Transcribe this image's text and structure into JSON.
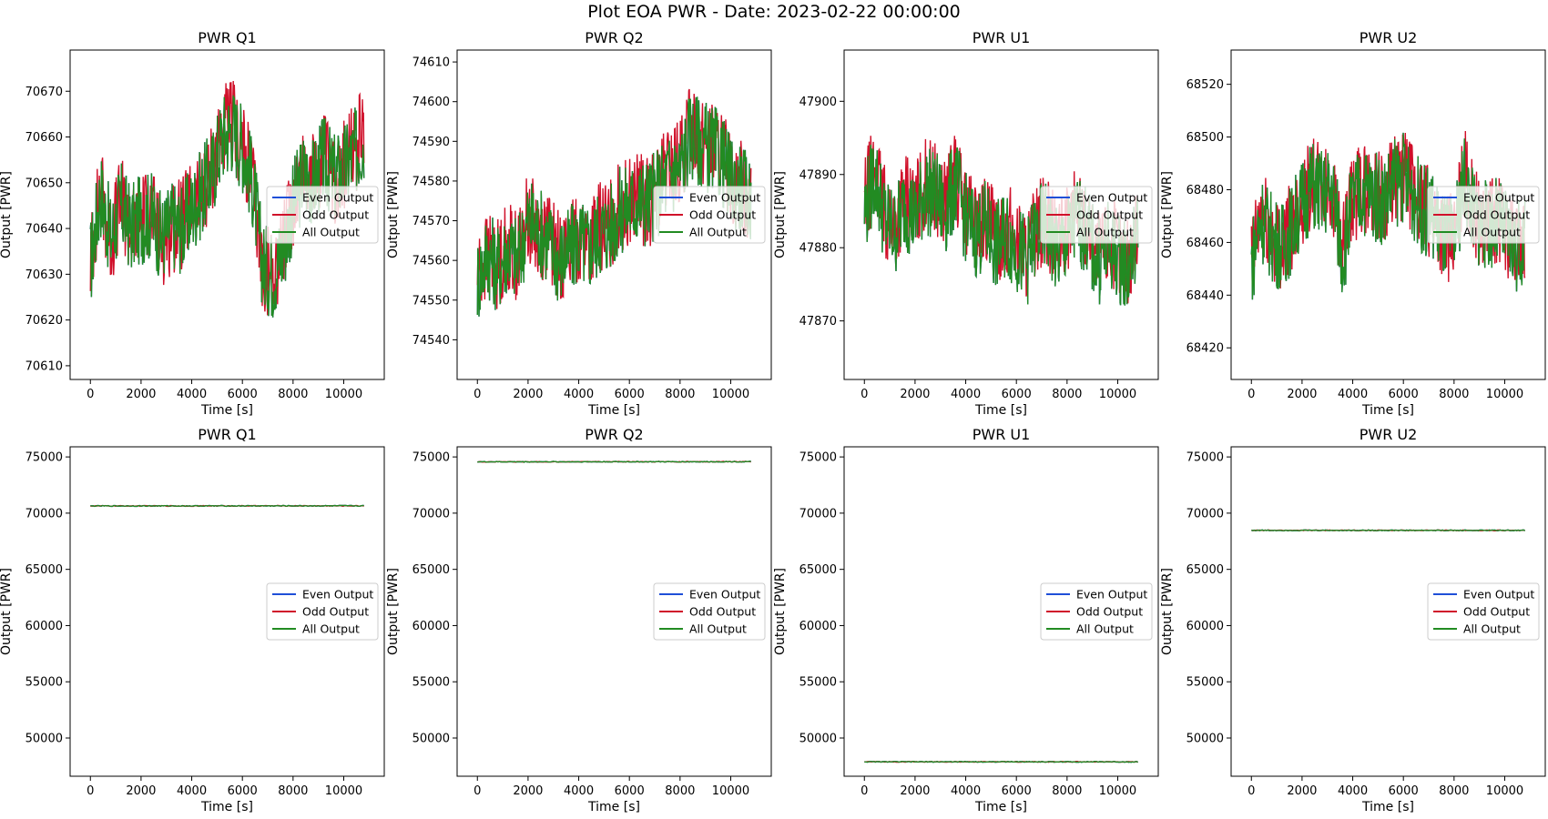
{
  "figure": {
    "title": "Plot EOA PWR - Date: 2023-02-22 00:00:00"
  },
  "legend_labels": [
    "Even Output",
    "Odd Output",
    "All Output"
  ],
  "series_colors": {
    "Even Output": "#1f4fd8",
    "Odd Output": "#d0102a",
    "All Output": "#228b22"
  },
  "chart_data": [
    {
      "type": "line",
      "title": "PWR Q1",
      "xlabel": "Time [s]",
      "ylabel": "Output [PWR]",
      "xlim": [
        -800,
        11600
      ],
      "ylim": [
        70607,
        70679
      ],
      "xticks": [
        0,
        2000,
        4000,
        6000,
        8000,
        10000
      ],
      "yticks": [
        70610,
        70620,
        70630,
        70640,
        70650,
        70660,
        70670
      ],
      "legend": "center-right",
      "grid": false,
      "x": [
        0,
        400,
        800,
        1200,
        1600,
        2000,
        2400,
        2800,
        3200,
        3600,
        4000,
        4400,
        4800,
        5200,
        5600,
        6000,
        6400,
        6800,
        7200,
        7600,
        8000,
        8400,
        8800,
        9200,
        9600,
        10000,
        10400,
        10800
      ],
      "series": [
        {
          "name": "Even Output",
          "values": [
            70632,
            70648,
            70638,
            70645,
            70640,
            70642,
            70643,
            70638,
            70641,
            70640,
            70644,
            70648,
            70652,
            70660,
            70662,
            70658,
            70650,
            70632,
            70630,
            70635,
            70645,
            70652,
            70650,
            70655,
            70651,
            70653,
            70656,
            70660
          ]
        },
        {
          "name": "Odd Output",
          "values": [
            70633,
            70649,
            70637,
            70646,
            70639,
            70643,
            70644,
            70637,
            70640,
            70641,
            70645,
            70647,
            70653,
            70661,
            70663,
            70657,
            70651,
            70631,
            70631,
            70636,
            70646,
            70654,
            70651,
            70656,
            70650,
            70654,
            70657,
            70661
          ]
        },
        {
          "name": "All Output",
          "values": [
            70632,
            70648,
            70638,
            70645,
            70640,
            70642,
            70643,
            70638,
            70641,
            70640,
            70644,
            70648,
            70652,
            70660,
            70662,
            70658,
            70650,
            70632,
            70630,
            70635,
            70645,
            70652,
            70650,
            70655,
            70651,
            70653,
            70656,
            70660
          ]
        }
      ]
    },
    {
      "type": "line",
      "title": "PWR Q2",
      "xlabel": "Time [s]",
      "ylabel": "Output [PWR]",
      "xlim": [
        -800,
        11600
      ],
      "ylim": [
        74530,
        74613
      ],
      "xticks": [
        0,
        2000,
        4000,
        6000,
        8000,
        10000
      ],
      "yticks": [
        74540,
        74550,
        74560,
        74570,
        74580,
        74590,
        74600,
        74610
      ],
      "legend": "center-right",
      "grid": false,
      "x": [
        0,
        400,
        800,
        1200,
        1600,
        2000,
        2400,
        2800,
        3200,
        3600,
        4000,
        4400,
        4800,
        5200,
        5600,
        6000,
        6400,
        6800,
        7200,
        7600,
        8000,
        8400,
        8800,
        9200,
        9600,
        10000,
        10400,
        10800
      ],
      "series": [
        {
          "name": "Even Output",
          "values": [
            74555,
            74562,
            74558,
            74563,
            74560,
            74570,
            74568,
            74565,
            74560,
            74562,
            74565,
            74563,
            74567,
            74568,
            74572,
            74574,
            74575,
            74575,
            74578,
            74582,
            74583,
            74592,
            74590,
            74588,
            74586,
            74580,
            74578,
            74575
          ]
        },
        {
          "name": "Odd Output",
          "values": [
            74556,
            74561,
            74559,
            74564,
            74561,
            74571,
            74567,
            74566,
            74561,
            74563,
            74566,
            74564,
            74568,
            74569,
            74573,
            74575,
            74576,
            74574,
            74579,
            74583,
            74584,
            74594,
            74591,
            74589,
            74587,
            74581,
            74579,
            74576
          ]
        },
        {
          "name": "All Output",
          "values": [
            74555,
            74562,
            74558,
            74563,
            74560,
            74570,
            74568,
            74565,
            74560,
            74562,
            74565,
            74563,
            74567,
            74568,
            74572,
            74574,
            74575,
            74575,
            74578,
            74582,
            74583,
            74592,
            74590,
            74588,
            74586,
            74580,
            74578,
            74575
          ]
        }
      ]
    },
    {
      "type": "line",
      "title": "PWR U1",
      "xlabel": "Time [s]",
      "ylabel": "Output [PWR]",
      "xlim": [
        -800,
        11600
      ],
      "ylim": [
        47862,
        47907
      ],
      "xticks": [
        0,
        2000,
        4000,
        6000,
        8000,
        10000
      ],
      "yticks": [
        47870,
        47880,
        47890,
        47900
      ],
      "legend": "center-right",
      "grid": false,
      "x": [
        0,
        400,
        800,
        1200,
        1600,
        2000,
        2400,
        2800,
        3200,
        3600,
        4000,
        4400,
        4800,
        5200,
        5600,
        6000,
        6400,
        6800,
        7200,
        7600,
        8000,
        8400,
        8800,
        9200,
        9600,
        10000,
        10400,
        10800
      ],
      "series": [
        {
          "name": "Even Output",
          "values": [
            47885,
            47890,
            47884,
            47882,
            47886,
            47884,
            47888,
            47887,
            47885,
            47889,
            47884,
            47882,
            47883,
            47880,
            47882,
            47880,
            47878,
            47882,
            47883,
            47879,
            47881,
            47884,
            47882,
            47878,
            47880,
            47879,
            47877,
            47882
          ]
        },
        {
          "name": "Odd Output",
          "values": [
            47886,
            47891,
            47885,
            47883,
            47887,
            47885,
            47889,
            47888,
            47886,
            47890,
            47885,
            47883,
            47884,
            47881,
            47883,
            47881,
            47879,
            47883,
            47884,
            47880,
            47882,
            47886,
            47883,
            47879,
            47881,
            47880,
            47878,
            47883
          ]
        },
        {
          "name": "All Output",
          "values": [
            47885,
            47890,
            47884,
            47882,
            47886,
            47884,
            47888,
            47887,
            47885,
            47889,
            47884,
            47882,
            47883,
            47880,
            47882,
            47880,
            47878,
            47882,
            47883,
            47879,
            47881,
            47884,
            47882,
            47878,
            47880,
            47879,
            47877,
            47882
          ]
        }
      ]
    },
    {
      "type": "line",
      "title": "PWR U2",
      "xlabel": "Time [s]",
      "ylabel": "Output [PWR]",
      "xlim": [
        -800,
        11600
      ],
      "ylim": [
        68408,
        68533
      ],
      "xticks": [
        0,
        2000,
        4000,
        6000,
        8000,
        10000
      ],
      "yticks": [
        68420,
        68440,
        68460,
        68480,
        68500,
        68520
      ],
      "legend": "center-right",
      "grid": false,
      "x": [
        0,
        400,
        800,
        1200,
        1600,
        2000,
        2400,
        2800,
        3200,
        3600,
        4000,
        4400,
        4800,
        5200,
        5600,
        6000,
        6400,
        6800,
        7200,
        7600,
        8000,
        8400,
        8800,
        9200,
        9600,
        10000,
        10400,
        10800
      ],
      "series": [
        {
          "name": "Even Output",
          "values": [
            68452,
            68470,
            68462,
            68458,
            68466,
            68475,
            68482,
            68478,
            68480,
            68455,
            68475,
            68480,
            68478,
            68476,
            68482,
            68485,
            68478,
            68472,
            68470,
            68462,
            68460,
            68485,
            68470,
            68466,
            68468,
            68464,
            68458,
            68460
          ]
        },
        {
          "name": "Odd Output",
          "values": [
            68453,
            68471,
            68463,
            68459,
            68467,
            68476,
            68483,
            68479,
            68481,
            68456,
            68476,
            68481,
            68479,
            68477,
            68483,
            68486,
            68479,
            68473,
            68471,
            68463,
            68461,
            68487,
            68471,
            68467,
            68469,
            68465,
            68459,
            68461
          ]
        },
        {
          "name": "All Output",
          "values": [
            68452,
            68470,
            68462,
            68458,
            68466,
            68475,
            68482,
            68478,
            68480,
            68455,
            68475,
            68480,
            68478,
            68476,
            68482,
            68485,
            68478,
            68472,
            68470,
            68462,
            68460,
            68485,
            68470,
            68466,
            68468,
            68464,
            68458,
            68460
          ]
        }
      ]
    },
    {
      "type": "line",
      "title": "PWR Q1",
      "xlabel": "Time [s]",
      "ylabel": "Output [PWR]",
      "xlim": [
        -800,
        11600
      ],
      "ylim": [
        46600,
        75900
      ],
      "xticks": [
        0,
        2000,
        4000,
        6000,
        8000,
        10000
      ],
      "yticks": [
        50000,
        55000,
        60000,
        65000,
        70000,
        75000
      ],
      "legend": "center-right",
      "grid": false,
      "x": [
        0,
        10800
      ],
      "series": [
        {
          "name": "Even Output",
          "values": [
            70640,
            70650
          ]
        },
        {
          "name": "Odd Output",
          "values": [
            70640,
            70650
          ]
        },
        {
          "name": "All Output",
          "values": [
            70640,
            70650
          ]
        }
      ]
    },
    {
      "type": "line",
      "title": "PWR Q2",
      "xlabel": "Time [s]",
      "ylabel": "Output [PWR]",
      "xlim": [
        -800,
        11600
      ],
      "ylim": [
        46600,
        75900
      ],
      "xticks": [
        0,
        2000,
        4000,
        6000,
        8000,
        10000
      ],
      "yticks": [
        50000,
        55000,
        60000,
        65000,
        70000,
        75000
      ],
      "legend": "center-right",
      "grid": false,
      "x": [
        0,
        10800
      ],
      "series": [
        {
          "name": "Even Output",
          "values": [
            74565,
            74575
          ]
        },
        {
          "name": "Odd Output",
          "values": [
            74565,
            74575
          ]
        },
        {
          "name": "All Output",
          "values": [
            74565,
            74575
          ]
        }
      ]
    },
    {
      "type": "line",
      "title": "PWR U1",
      "xlabel": "Time [s]",
      "ylabel": "Output [PWR]",
      "xlim": [
        -800,
        11600
      ],
      "ylim": [
        46600,
        75900
      ],
      "xticks": [
        0,
        2000,
        4000,
        6000,
        8000,
        10000
      ],
      "yticks": [
        50000,
        55000,
        60000,
        65000,
        70000,
        75000
      ],
      "legend": "center-right",
      "grid": false,
      "x": [
        0,
        10800
      ],
      "series": [
        {
          "name": "Even Output",
          "values": [
            47885,
            47882
          ]
        },
        {
          "name": "Odd Output",
          "values": [
            47885,
            47882
          ]
        },
        {
          "name": "All Output",
          "values": [
            47885,
            47882
          ]
        }
      ]
    },
    {
      "type": "line",
      "title": "PWR U2",
      "xlabel": "Time [s]",
      "ylabel": "Output [PWR]",
      "xlim": [
        -800,
        11600
      ],
      "ylim": [
        46600,
        75900
      ],
      "xticks": [
        0,
        2000,
        4000,
        6000,
        8000,
        10000
      ],
      "yticks": [
        50000,
        55000,
        60000,
        65000,
        70000,
        75000
      ],
      "legend": "center-right",
      "grid": false,
      "x": [
        0,
        10800
      ],
      "series": [
        {
          "name": "Even Output",
          "values": [
            68470,
            68468
          ]
        },
        {
          "name": "Odd Output",
          "values": [
            68470,
            68468
          ]
        },
        {
          "name": "All Output",
          "values": [
            68470,
            68468
          ]
        }
      ]
    }
  ]
}
